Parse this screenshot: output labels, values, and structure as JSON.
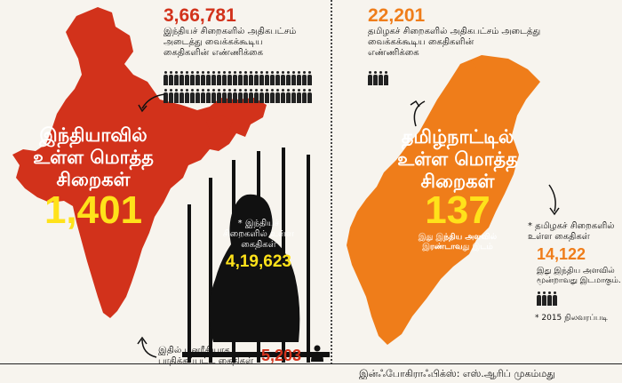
{
  "left": {
    "capacity_count": "3,66,781",
    "capacity_caption_1": "இந்தியச் சிறைகளில் அதிகபட்சம்",
    "capacity_caption_2": "அடைத்து வைக்கக்கூடிய",
    "capacity_caption_3": "கைதிகளின் எண்ணிக்கை",
    "title_1": "இந்தியாவில்",
    "title_2": "உள்ள மொத்த",
    "title_3": "சிறைகள்",
    "total_prisons": "1,401",
    "inmates_caption_1": "* இந்தியச்",
    "inmates_caption_2": "சிறைகளில் உள்ள",
    "inmates_caption_3": "கைதிகள்",
    "inmates_count": "4,19,623",
    "mental_caption_1": "இதில் மனரீதியாக",
    "mental_caption_2": "பாதிக்கப்பட்ட கைதிகள்",
    "mental_count": "5,203"
  },
  "right": {
    "capacity_count": "22,201",
    "capacity_caption_1": "தமிழகச் சிறைகளில் அதிகபட்சம் அடைத்து",
    "capacity_caption_2": "வைக்கக்கூடிய கைதிகளின்",
    "capacity_caption_3": "எண்ணிக்கை",
    "title_1": "தமிழ்நாட்டில்",
    "title_2": "உள்ள மொத்த",
    "title_3": "சிறைகள்",
    "total_prisons": "137",
    "rank_caption_1": "இது இந்திய அளவில்",
    "rank_caption_2": "இரண்டாவது இடம்",
    "inmates_caption_1": "* தமிழகச் சிறைகளில்",
    "inmates_caption_2": "உள்ள கைதிகள்",
    "inmates_count": "14,122",
    "inmates_rank_1": "இது இந்திய அளவில்",
    "inmates_rank_2": "மூன்றாவது இடமாகும்.",
    "footnote": "* 2015 நிலவரப்படி"
  },
  "credit": "இன்ஃபோகிராஃபிக்ஸ்: எஸ்.ஆரிப் முகம்மது",
  "colors": {
    "india_map": "#d2321b",
    "tn_map": "#ef7d1a",
    "highlight": "#ffe21a"
  }
}
